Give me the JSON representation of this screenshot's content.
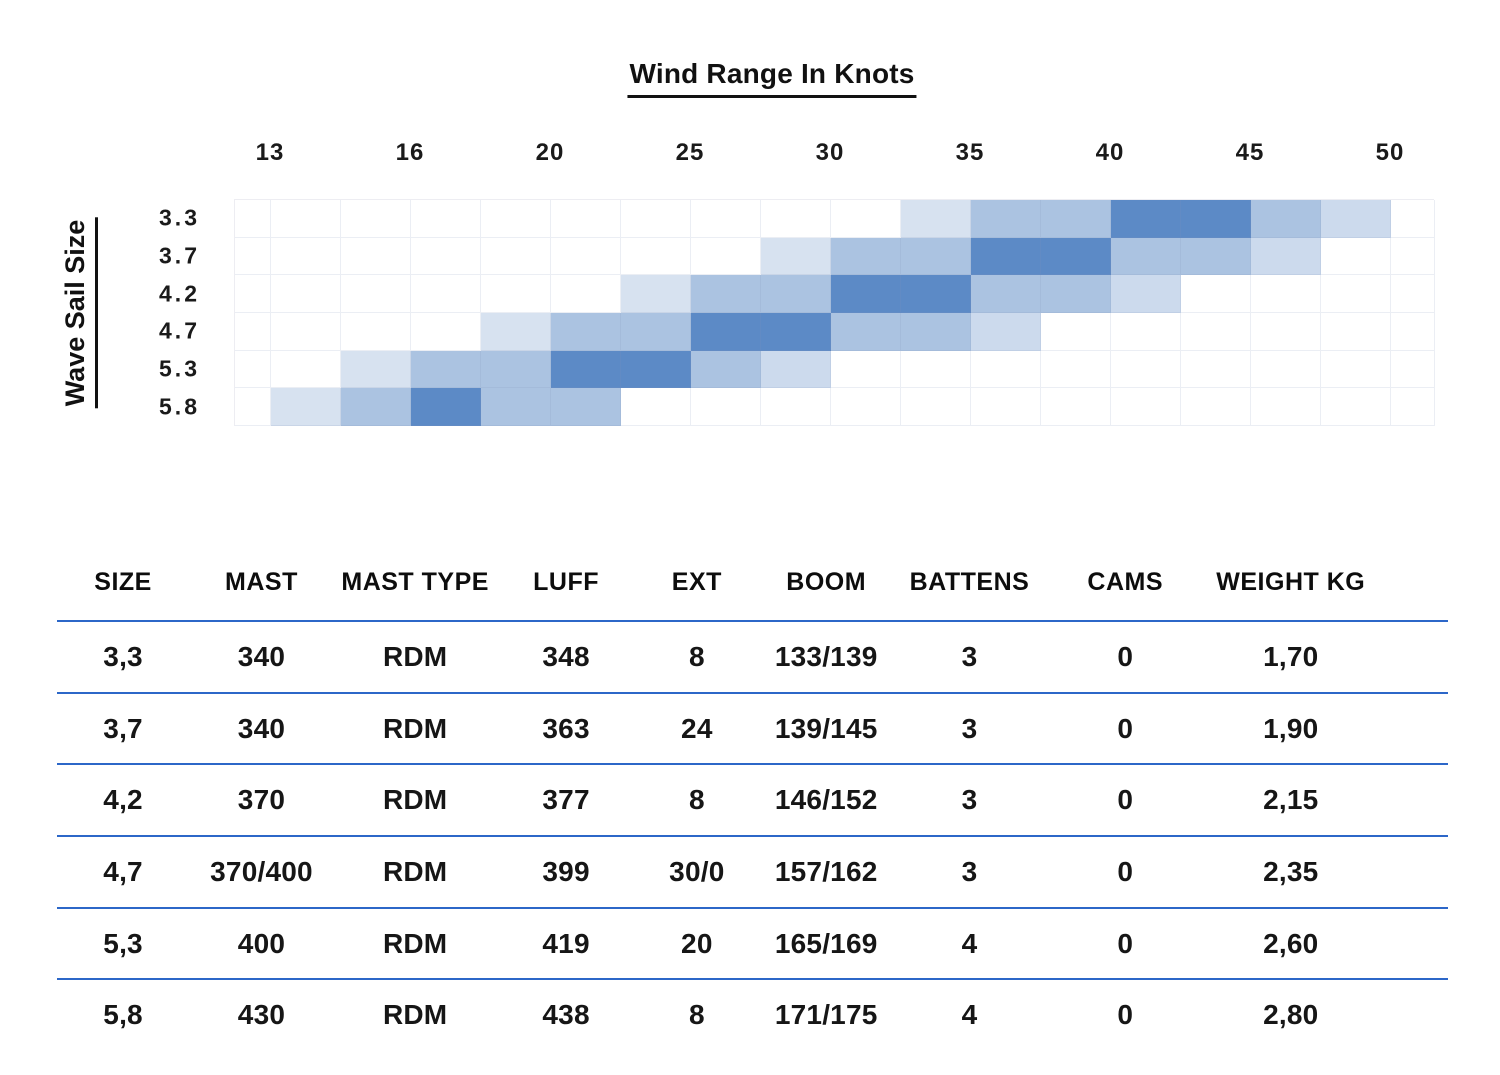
{
  "chart": {
    "title": "Wind Range In Knots",
    "y_axis_title": "Wave Sail Size"
  },
  "chart_data": [
    {
      "type": "heatmap",
      "title": "Wind Range In Knots",
      "ylabel": "Wave Sail Size",
      "x_ticks": [
        "13",
        "16",
        "20",
        "25",
        "30",
        "35",
        "40",
        "45",
        "50"
      ],
      "x_axis_note": "ticks sit on cell boundaries; there are two heatmap columns between consecutive ticks (16 columns total spanning 13-50 knots)",
      "row_labels": [
        "3.3",
        "3.7",
        "4.2",
        "4.7",
        "5.3",
        "5.8"
      ],
      "legend": "cell intensity 0=empty, 1=lightest, 2=light, 3=medium, 4=dark (sweet spot)",
      "palette": {
        "1": "#d7e2f0",
        "2": "#ccdaed",
        "3": "#abc3e1",
        "4": "#5c8ac6"
      },
      "matrix": [
        [
          0,
          0,
          0,
          0,
          0,
          0,
          0,
          0,
          0,
          1,
          3,
          3,
          4,
          4,
          3,
          2
        ],
        [
          0,
          0,
          0,
          0,
          0,
          0,
          0,
          1,
          3,
          3,
          4,
          4,
          3,
          3,
          2,
          0
        ],
        [
          0,
          0,
          0,
          0,
          0,
          1,
          3,
          3,
          4,
          4,
          3,
          3,
          2,
          0,
          0,
          0
        ],
        [
          0,
          0,
          0,
          1,
          3,
          3,
          4,
          4,
          3,
          3,
          2,
          0,
          0,
          0,
          0,
          0
        ],
        [
          0,
          1,
          3,
          3,
          4,
          4,
          3,
          2,
          0,
          0,
          0,
          0,
          0,
          0,
          0,
          0
        ],
        [
          1,
          3,
          4,
          3,
          3,
          0,
          0,
          0,
          0,
          0,
          0,
          0,
          0,
          0,
          0,
          0
        ]
      ],
      "grid": true
    },
    {
      "type": "table",
      "headers": [
        "SIZE",
        "MAST",
        "MAST TYPE",
        "LUFF",
        "EXT",
        "BOOM",
        "BATTENS",
        "CAMS",
        "WEIGHT KG"
      ],
      "rows": [
        [
          "3,3",
          "340",
          "RDM",
          "348",
          "8",
          "133/139",
          "3",
          "0",
          "1,70"
        ],
        [
          "3,7",
          "340",
          "RDM",
          "363",
          "24",
          "139/145",
          "3",
          "0",
          "1,90"
        ],
        [
          "4,2",
          "370",
          "RDM",
          "377",
          "8",
          "146/152",
          "3",
          "0",
          "2,15"
        ],
        [
          "4,7",
          "370/400",
          "RDM",
          "399",
          "30/0",
          "157/162",
          "3",
          "0",
          "2,35"
        ],
        [
          "5,3",
          "400",
          "RDM",
          "419",
          "20",
          "165/169",
          "4",
          "0",
          "2,60"
        ],
        [
          "5,8",
          "430",
          "RDM",
          "438",
          "8",
          "171/175",
          "4",
          "0",
          "2,80"
        ]
      ]
    }
  ],
  "colors": {
    "table_rule_blue": "#2c67c8",
    "grid_line": "#ededf2",
    "text": "#141414"
  }
}
